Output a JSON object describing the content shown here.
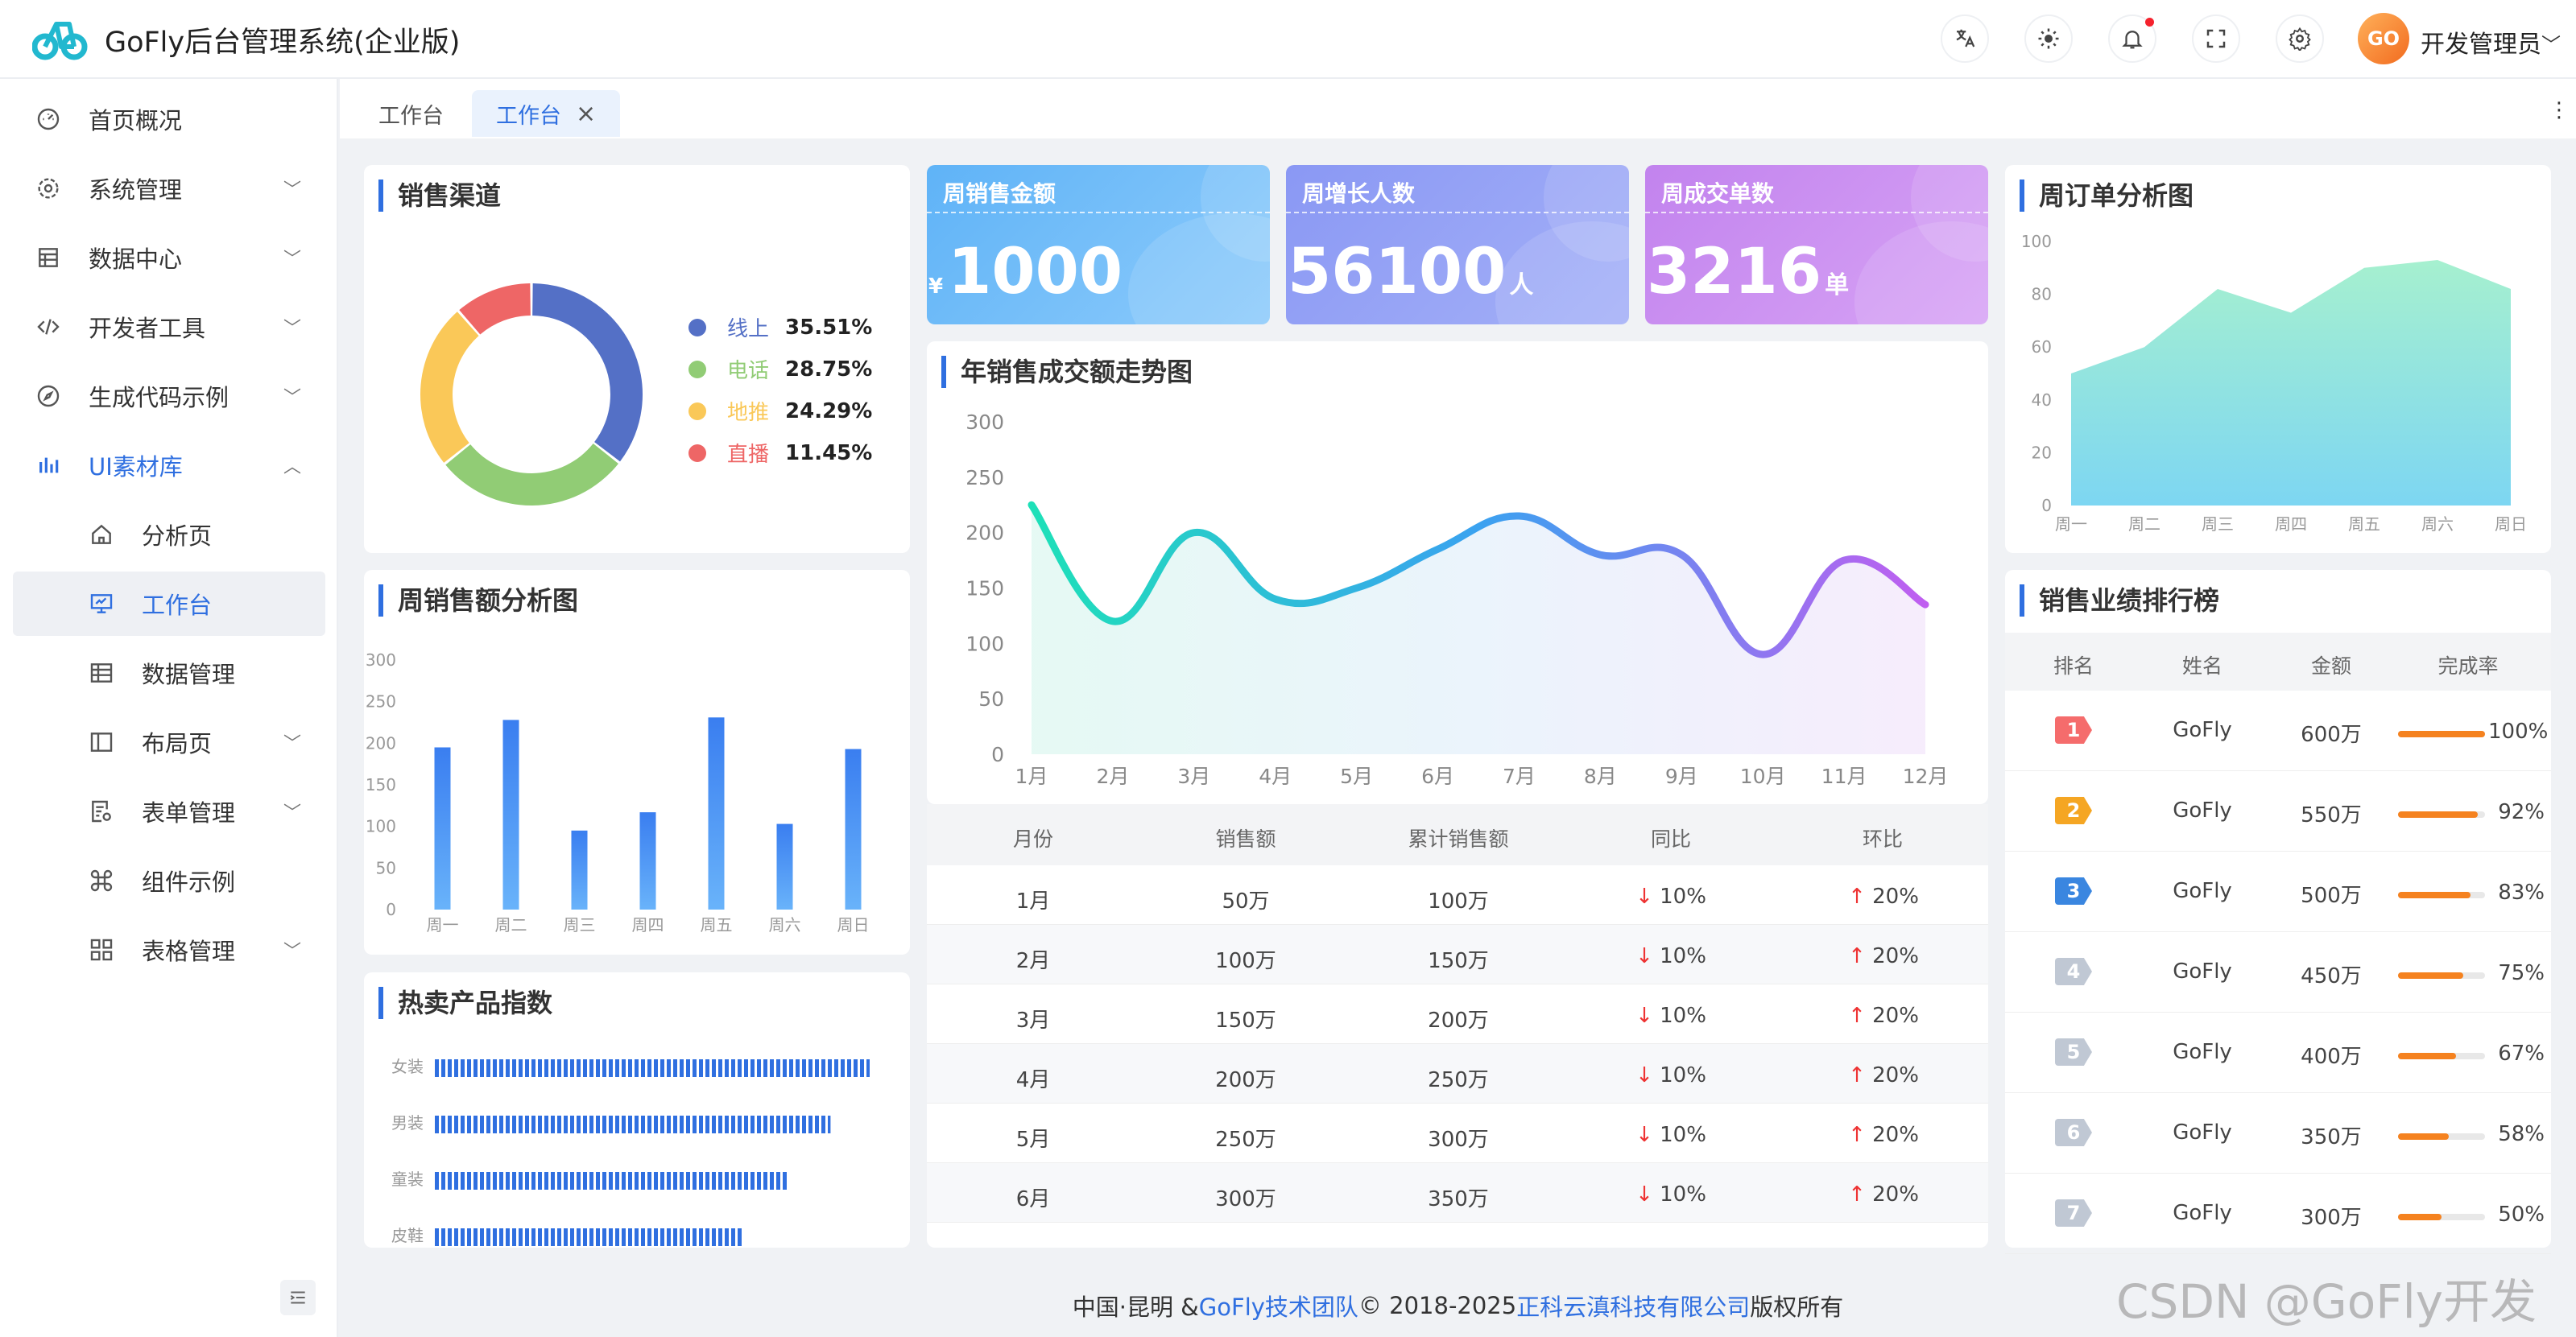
{
  "header": {
    "title": "GoFly后台管理系统(企业版)",
    "avatar_text": "GO",
    "username": "开发管理员"
  },
  "icons": {
    "logo": "bike-logo-icon",
    "translate": "translate-icon",
    "theme": "sun-icon",
    "notify": "bell-icon",
    "fullscreen": "fullscreen-icon",
    "settings": "gear-icon"
  },
  "sidebar": {
    "items": [
      {
        "label": "首页概况",
        "icon": "dashboard-icon"
      },
      {
        "label": "系统管理",
        "icon": "gear-icon"
      },
      {
        "label": "数据中心",
        "icon": "database-icon"
      },
      {
        "label": "开发者工具",
        "icon": "code-icon"
      },
      {
        "label": "生成代码示例",
        "icon": "compass-icon"
      },
      {
        "label": "UI素材库",
        "icon": "chart-bars-icon"
      },
      {
        "label": "分析页",
        "icon": "home-icon"
      },
      {
        "label": "工作台",
        "icon": "monitor-icon"
      },
      {
        "label": "数据管理",
        "icon": "table-icon"
      },
      {
        "label": "布局页",
        "icon": "layout-icon"
      },
      {
        "label": "表单管理",
        "icon": "form-icon"
      },
      {
        "label": "组件示例",
        "icon": "command-icon"
      },
      {
        "label": "表格管理",
        "icon": "grid-icon"
      }
    ]
  },
  "tabs": [
    {
      "label": "工作台"
    },
    {
      "label": "工作台"
    }
  ],
  "sales_channel": {
    "title": "销售渠道",
    "legend": [
      {
        "name": "线上",
        "value": "35.51%",
        "color": "#5470c6"
      },
      {
        "name": "电话",
        "value": "28.75%",
        "color": "#91cc75"
      },
      {
        "name": "地推",
        "value": "24.29%",
        "color": "#fac858"
      },
      {
        "name": "直播",
        "value": "11.45%",
        "color": "#ee6666"
      }
    ]
  },
  "stats": [
    {
      "title": "周销售金额",
      "prefix": "¥",
      "value": "1000",
      "suffix": ""
    },
    {
      "title": "周增长人数",
      "prefix": "",
      "value": "56100",
      "suffix": "人"
    },
    {
      "title": "周成交单数",
      "prefix": "",
      "value": "3216",
      "suffix": "单"
    }
  ],
  "weekly_sales": {
    "title": "周销售额分析图"
  },
  "hot_products": {
    "title": "热卖产品指数",
    "items": [
      {
        "name": "女装",
        "value": 100
      },
      {
        "name": "男装",
        "value": 91
      },
      {
        "name": "童装",
        "value": 81
      },
      {
        "name": "皮鞋",
        "value": 71
      }
    ]
  },
  "trend": {
    "title": "年销售成交额走势图"
  },
  "weekly_orders": {
    "title": "周订单分析图"
  },
  "month_table": {
    "headers": [
      "月份",
      "销售额",
      "累计销售额",
      "同比",
      "环比"
    ],
    "rows": [
      {
        "month": "1月",
        "sales": "50万",
        "total": "100万",
        "yoy": "10%",
        "mom": "20%"
      },
      {
        "month": "2月",
        "sales": "100万",
        "total": "150万",
        "yoy": "10%",
        "mom": "20%"
      },
      {
        "month": "3月",
        "sales": "150万",
        "total": "200万",
        "yoy": "10%",
        "mom": "20%"
      },
      {
        "month": "4月",
        "sales": "200万",
        "total": "250万",
        "yoy": "10%",
        "mom": "20%"
      },
      {
        "month": "5月",
        "sales": "250万",
        "total": "300万",
        "yoy": "10%",
        "mom": "20%"
      },
      {
        "month": "6月",
        "sales": "300万",
        "total": "350万",
        "yoy": "10%",
        "mom": "20%"
      }
    ]
  },
  "ranking": {
    "title": "销售业绩排行榜",
    "headers": [
      "排名",
      "姓名",
      "金额",
      "完成率"
    ],
    "rows": [
      {
        "rank": "1",
        "name": "GoFly",
        "amount": "600万",
        "rate": "100%",
        "fill": 1.0,
        "color": "#f56c6c"
      },
      {
        "rank": "2",
        "name": "GoFly",
        "amount": "550万",
        "rate": "92%",
        "fill": 0.92,
        "color": "#f5a623"
      },
      {
        "rank": "3",
        "name": "GoFly",
        "amount": "500万",
        "rate": "83%",
        "fill": 0.83,
        "color": "#3a86e0"
      },
      {
        "rank": "4",
        "name": "GoFly",
        "amount": "450万",
        "rate": "75%",
        "fill": 0.75,
        "color": "#c0c8d4"
      },
      {
        "rank": "5",
        "name": "GoFly",
        "amount": "400万",
        "rate": "67%",
        "fill": 0.67,
        "color": "#c0c8d4"
      },
      {
        "rank": "6",
        "name": "GoFly",
        "amount": "350万",
        "rate": "58%",
        "fill": 0.58,
        "color": "#c0c8d4"
      },
      {
        "rank": "7",
        "name": "GoFly",
        "amount": "300万",
        "rate": "50%",
        "fill": 0.5,
        "color": "#c0c8d4"
      }
    ]
  },
  "footer": {
    "t1": "中国·昆明 & ",
    "l1": "GoFly技术团队",
    "t2": " © 2018-2025 ",
    "l2": "正科云滇科技有限公司",
    "t3": " 版权所有"
  },
  "watermark": "CSDN @GoFly开发者",
  "chart_data": [
    {
      "type": "pie",
      "title": "销售渠道",
      "categories": [
        "线上",
        "电话",
        "地推",
        "直播"
      ],
      "values": [
        35.51,
        28.75,
        24.29,
        11.45
      ]
    },
    {
      "type": "bar",
      "title": "周销售额分析图",
      "categories": [
        "周一",
        "周二",
        "周三",
        "周四",
        "周五",
        "周六",
        "周日"
      ],
      "values": [
        195,
        228,
        95,
        117,
        231,
        103,
        193
      ],
      "ylim": [
        0,
        300
      ],
      "yticks": [
        0,
        50,
        100,
        150,
        200,
        250,
        300
      ]
    },
    {
      "type": "area",
      "title": "年销售成交额走势图",
      "categories": [
        "1月",
        "2月",
        "3月",
        "4月",
        "5月",
        "6月",
        "7月",
        "8月",
        "9月",
        "10月",
        "11月",
        "12月"
      ],
      "values": [
        225,
        120,
        200,
        140,
        150,
        185,
        215,
        180,
        180,
        90,
        175,
        135
      ],
      "ylim": [
        0,
        300
      ],
      "yticks": [
        0,
        50,
        100,
        150,
        200,
        250,
        300
      ]
    },
    {
      "type": "area",
      "title": "周订单分析图",
      "categories": [
        "周一",
        "周二",
        "周三",
        "周四",
        "周五",
        "周六",
        "周日"
      ],
      "values": [
        50,
        60,
        82,
        73,
        90,
        93,
        82
      ],
      "ylim": [
        0,
        100
      ],
      "yticks": [
        0,
        20,
        40,
        60,
        80,
        100
      ]
    }
  ]
}
